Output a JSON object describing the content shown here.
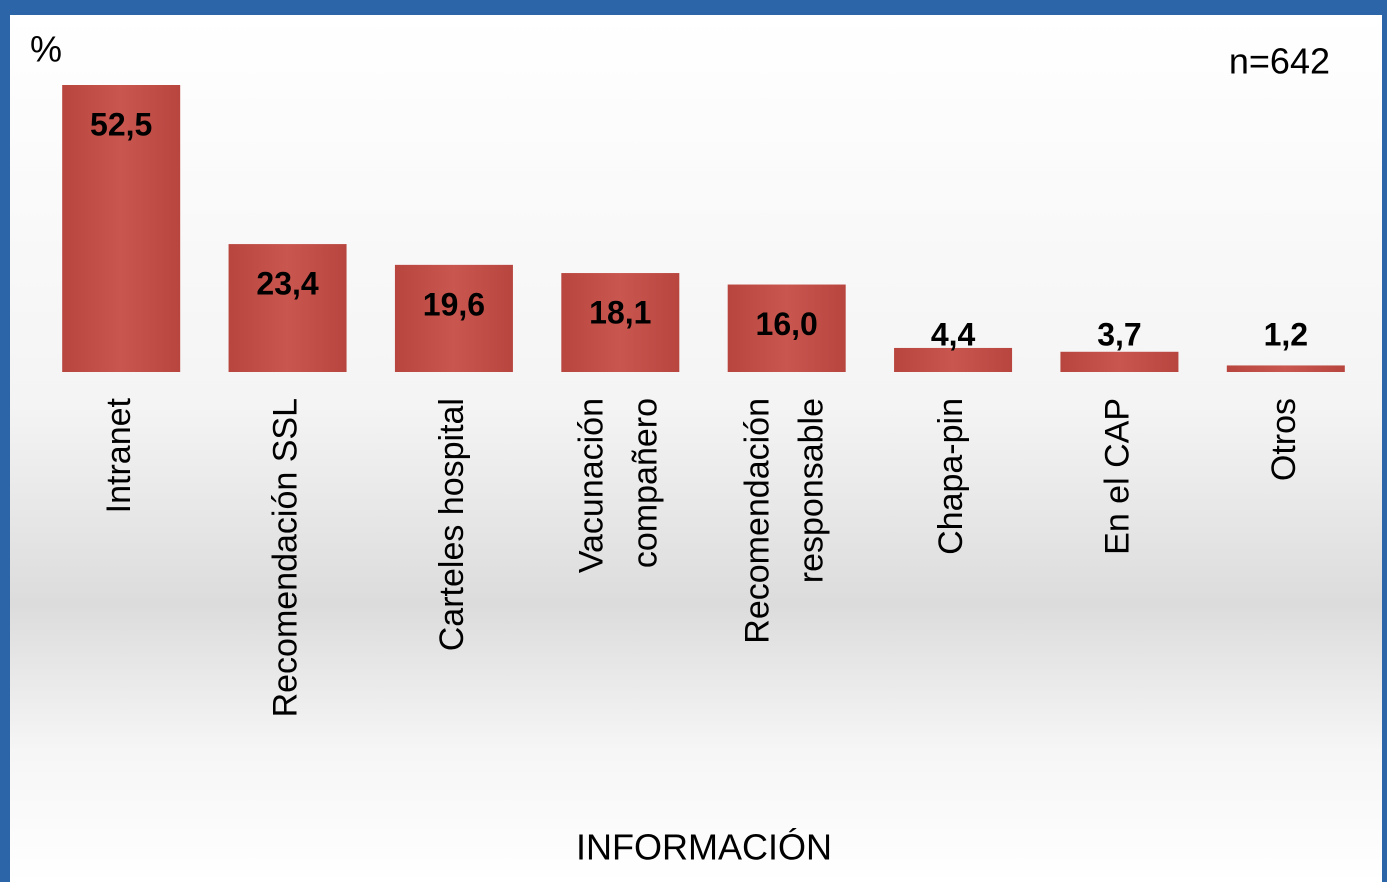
{
  "chart_data": {
    "type": "bar",
    "y_label": "%",
    "annotation": "n=642",
    "x_label": "INFORMACIÓN",
    "categories": [
      "Intranet",
      "Recomendación SSL",
      "Carteles hospital",
      "Vacunación\ncompañero",
      "Recomendación\nresponsable",
      "Chapa-pin",
      "En el CAP",
      "Otros"
    ],
    "values": [
      52.5,
      23.4,
      19.6,
      18.1,
      16.0,
      4.4,
      3.7,
      1.2
    ],
    "value_labels": [
      "52,5",
      "23,4",
      "19,6",
      "18,1",
      "16,0",
      "4,4",
      "3,7",
      "1,2"
    ],
    "color": "#c0504d",
    "ylim": [
      0,
      60
    ]
  }
}
